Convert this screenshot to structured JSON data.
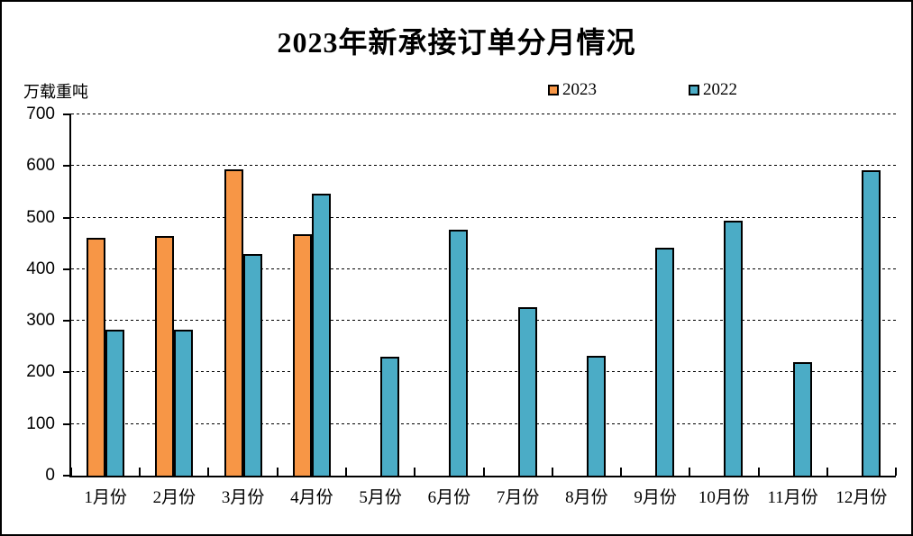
{
  "page": {
    "title": "2023年新承接订单分月情况",
    "unit_label": "万载重吨"
  },
  "legend": {
    "position": "top",
    "items": [
      {
        "label": "2023",
        "color": "#F79646"
      },
      {
        "label": "2022",
        "color": "#4BACC6"
      }
    ]
  },
  "colors": {
    "bar_2023": "#F79646",
    "bar_2022": "#4BACC6",
    "bar_border": "#000000",
    "axis": "#000000",
    "background": "#FFFFFF"
  },
  "chart_data": {
    "type": "bar",
    "title": "2023年新承接订单分月情况",
    "xlabel": "",
    "ylabel": "万载重吨",
    "ylim": [
      0,
      700
    ],
    "yticks": [
      0,
      100,
      200,
      300,
      400,
      500,
      600,
      700
    ],
    "grid": "horizontal-dashed",
    "legend_position": "top",
    "categories": [
      "1月份",
      "2月份",
      "3月份",
      "4月份",
      "5月份",
      "6月份",
      "7月份",
      "8月份",
      "9月份",
      "10月份",
      "11月份",
      "12月份"
    ],
    "series": [
      {
        "name": "2023",
        "color": "#F79646",
        "values": [
          461,
          464,
          593,
          467,
          null,
          null,
          null,
          null,
          null,
          null,
          null,
          null
        ]
      },
      {
        "name": "2022",
        "color": "#4BACC6",
        "values": [
          282,
          283,
          430,
          546,
          230,
          477,
          326,
          232,
          441,
          494,
          220,
          591
        ]
      }
    ]
  }
}
